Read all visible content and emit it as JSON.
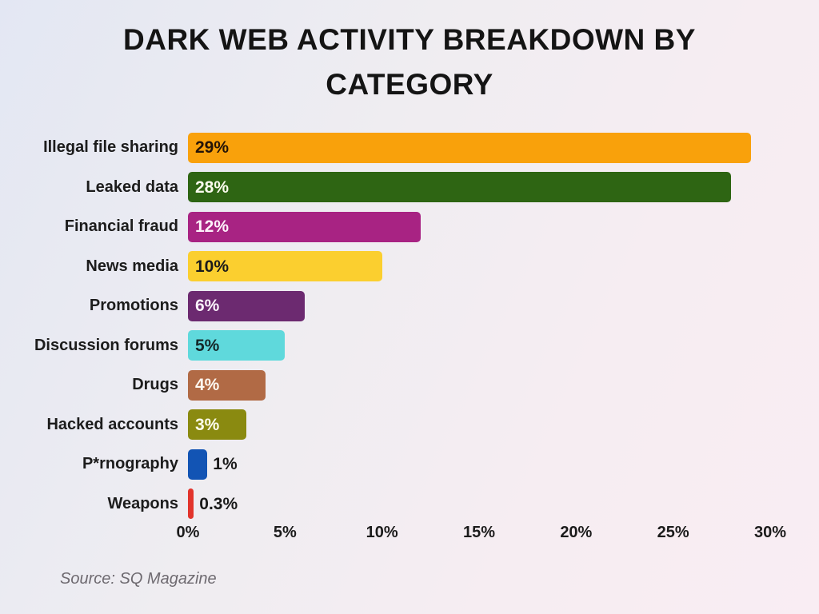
{
  "title_line1": "DARK WEB ACTIVITY BREAKDOWN BY",
  "title_line2": "CATEGORY",
  "source": "Source: SQ Magazine",
  "chart_data": {
    "type": "bar",
    "orientation": "horizontal",
    "title": "DARK WEB ACTIVITY BREAKDOWN BY CATEGORY",
    "xlabel": "",
    "ylabel": "",
    "xlim": [
      0,
      30
    ],
    "grid": false,
    "legend": "none",
    "x_ticks": [
      "0%",
      "5%",
      "10%",
      "15%",
      "20%",
      "25%",
      "30%"
    ],
    "x_tick_values": [
      0,
      5,
      10,
      15,
      20,
      25,
      30
    ],
    "categories": [
      "Illegal file sharing",
      "Leaked data",
      "Financial fraud",
      "News media",
      "Promotions",
      "Discussion forums",
      "Drugs",
      "Hacked accounts",
      "P*rnography",
      "Weapons"
    ],
    "values": [
      29,
      28,
      12,
      10,
      6,
      5,
      4,
      3,
      1,
      0.3
    ],
    "bars": [
      {
        "label": "Illegal file sharing",
        "value": 29,
        "display": "29%",
        "color": "#F9A10B",
        "text_color": "#241307",
        "label_position": "inside"
      },
      {
        "label": "Leaked data",
        "value": 28,
        "display": "28%",
        "color": "#2E6513",
        "text_color": "#fbfbee",
        "label_position": "inside"
      },
      {
        "label": "Financial fraud",
        "value": 12,
        "display": "12%",
        "color": "#A82383",
        "text_color": "#fdf2fa",
        "label_position": "inside"
      },
      {
        "label": "News media",
        "value": 10,
        "display": "10%",
        "color": "#FBCF2F",
        "text_color": "#1b1b1b",
        "label_position": "inside"
      },
      {
        "label": "Promotions",
        "value": 6,
        "display": "6%",
        "color": "#6C2A70",
        "text_color": "#fbf3fb",
        "label_position": "inside"
      },
      {
        "label": "Discussion forums",
        "value": 5,
        "display": "5%",
        "color": "#5FD9DC",
        "text_color": "#152829",
        "label_position": "inside"
      },
      {
        "label": "Drugs",
        "value": 4,
        "display": "4%",
        "color": "#B16A45",
        "text_color": "#fdf7f0",
        "label_position": "inside"
      },
      {
        "label": "Hacked accounts",
        "value": 3,
        "display": "3%",
        "color": "#8A8A10",
        "text_color": "#fdfdec",
        "label_position": "inside"
      },
      {
        "label": "P*rnography",
        "value": 1,
        "display": "1%",
        "color": "#1254B4",
        "text_color": "#1a1a1a",
        "label_position": "outside"
      },
      {
        "label": "Weapons",
        "value": 0.3,
        "display": "0.3%",
        "color": "#E2342C",
        "text_color": "#1a1a1a",
        "label_position": "outside"
      }
    ]
  }
}
